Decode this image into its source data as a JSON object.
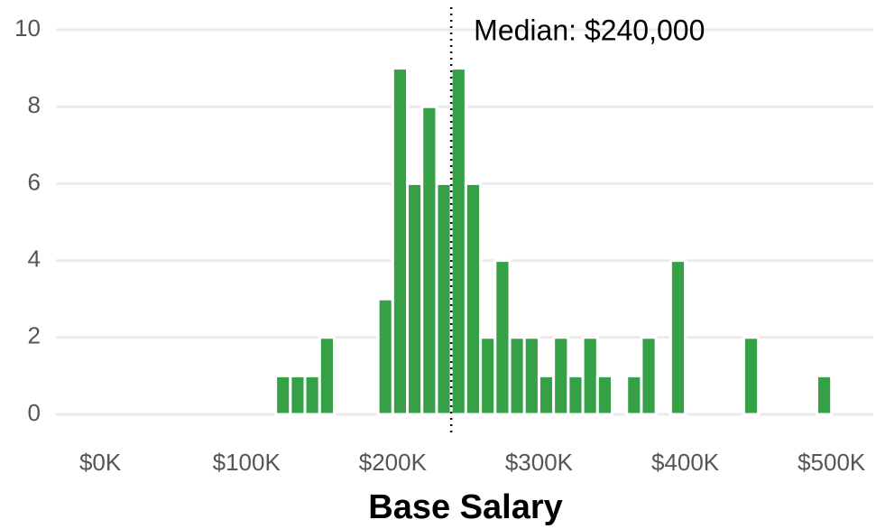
{
  "chart_data": {
    "type": "histogram",
    "x_label": "Base Salary",
    "bins": [
      0,
      10000,
      20000,
      30000,
      40000,
      50000,
      60000,
      70000,
      80000,
      90000,
      100000,
      110000,
      120000,
      130000,
      140000,
      150000,
      160000,
      170000,
      180000,
      190000,
      200000,
      210000,
      220000,
      230000,
      240000,
      250000,
      260000,
      270000,
      280000,
      290000,
      300000,
      310000,
      320000,
      330000,
      340000,
      350000,
      360000,
      370000,
      380000,
      390000,
      400000,
      410000,
      420000,
      430000,
      440000,
      450000,
      460000,
      470000,
      480000,
      490000,
      500000
    ],
    "values": [
      0,
      0,
      0,
      0,
      0,
      0,
      0,
      0,
      0,
      0,
      0,
      0,
      1,
      1,
      1,
      2,
      0,
      0,
      0,
      3,
      9,
      6,
      8,
      6,
      9,
      6,
      2,
      4,
      2,
      2,
      1,
      2,
      1,
      2,
      1,
      0,
      1,
      2,
      0,
      4,
      0,
      0,
      0,
      0,
      2,
      0,
      0,
      0,
      0,
      1
    ],
    "color": "#35a046",
    "xlim": [
      -5000,
      515000
    ],
    "xticks": [
      {
        "value": 0,
        "label": "$0K"
      },
      {
        "value": 100000,
        "label": "$100K"
      },
      {
        "value": 200000,
        "label": "$200K"
      },
      {
        "value": 300000,
        "label": "$300K"
      },
      {
        "value": 400000,
        "label": "$400K"
      },
      {
        "value": 500000,
        "label": "$500K"
      }
    ],
    "ylim": [
      0,
      10
    ],
    "yticks": [
      0,
      2,
      4,
      6,
      8,
      10
    ],
    "grid": true,
    "annotation": {
      "text": "Median: $240,000",
      "x": 240000
    }
  }
}
